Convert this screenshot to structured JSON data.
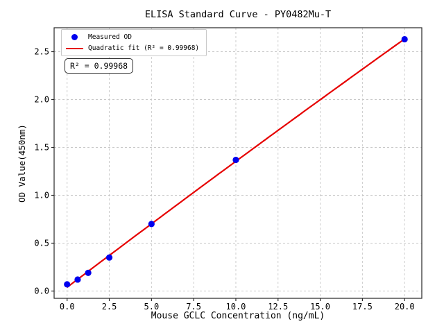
{
  "title": "ELISA Standard Curve - PY0482Mu-T",
  "legend": {
    "measured_label": "Measured OD",
    "fit_label": "Quadratic fit (R² = 0.99968)"
  },
  "annotation": {
    "text": "R² = 0.99968"
  },
  "colors": {
    "measured_point": "#0000ee",
    "fit_line": "#e60000",
    "grid": "#c8c8c8",
    "spine": "#262626",
    "background": "#ffffff"
  },
  "chart_data": {
    "type": "scatter",
    "title": "ELISA Standard Curve - PY0482Mu-T",
    "xlabel": "Mouse GCLC Concentration (ng/mL)",
    "ylabel": "OD Value(450nm)",
    "x": [
      0,
      0.625,
      1.25,
      2.5,
      5,
      10,
      20
    ],
    "y": [
      0.07,
      0.12,
      0.19,
      0.35,
      0.7,
      1.37,
      2.63
    ],
    "series": [
      {
        "name": "Measured OD",
        "type": "scatter",
        "marker": "circle",
        "color": "#0000ee"
      },
      {
        "name": "Quadratic fit",
        "type": "quadratic_fit",
        "color": "#e60000",
        "r_squared": 0.99968
      }
    ],
    "xlim": [
      -0.77,
      21.02
    ],
    "ylim": [
      -0.076,
      2.75
    ],
    "x_ticks": [
      0.0,
      2.5,
      5.0,
      7.5,
      10.0,
      12.5,
      15.0,
      17.5,
      20.0
    ],
    "y_ticks": [
      0.0,
      0.5,
      1.0,
      1.5,
      2.0,
      2.5
    ],
    "tick_decimals": 1,
    "grid": true,
    "grid_style": "dashed",
    "legend_position": "upper-left"
  }
}
